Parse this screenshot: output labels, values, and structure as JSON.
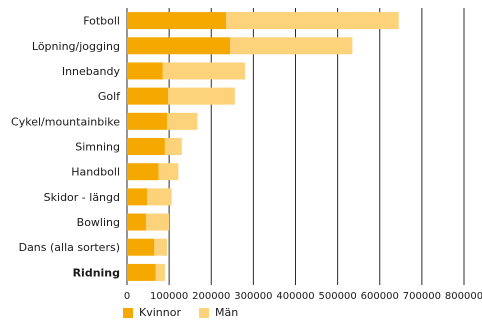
{
  "chart_data": {
    "type": "bar",
    "orientation": "horizontal",
    "stacked": true,
    "categories": [
      "Fotboll",
      "Löpning/jogging",
      "Innebandy",
      "Golf",
      "Cykel/mountainbike",
      "Simning",
      "Handboll",
      "Skidor - längd",
      "Bowling",
      "Dans (alla sorters)",
      "Ridning"
    ],
    "highlighted_category": "Ridning",
    "series": [
      {
        "name": "Kvinnor",
        "color": "#f5a800",
        "values": [
          235000,
          245000,
          85000,
          98000,
          95000,
          90000,
          75000,
          48000,
          45000,
          65000,
          68000
        ]
      },
      {
        "name": "Män",
        "color": "#fcd27a",
        "values": [
          410000,
          290000,
          195000,
          158000,
          72000,
          40000,
          47000,
          58000,
          55000,
          30000,
          22000
        ]
      }
    ],
    "xticks": [
      "0",
      "100000",
      "200000",
      "300000",
      "400000",
      "500000",
      "600000",
      "700000",
      "800000"
    ],
    "xlim": [
      0,
      800000
    ],
    "grid": "vertical",
    "legend_position": "bottom"
  }
}
